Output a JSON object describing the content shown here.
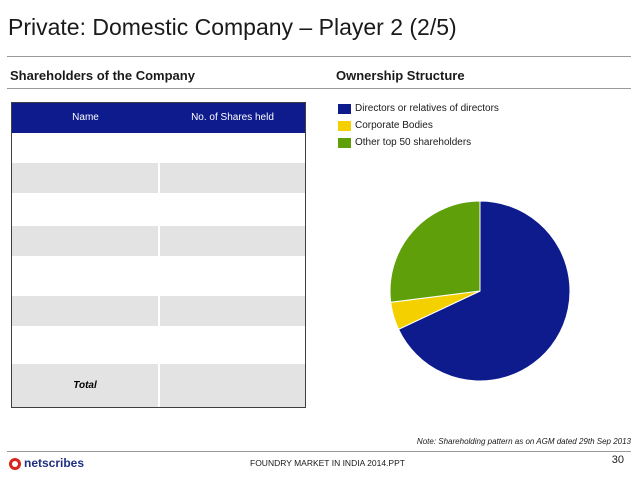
{
  "slide": {
    "title": "Private: Domestic Company – Player 2 (2/5)",
    "left_heading": "Shareholders of the Company",
    "right_heading": "Ownership Structure",
    "note": "Note: Shareholding pattern as on AGM dated 29th Sep 2013",
    "footer": "FOUNDRY MARKET IN INDIA 2014.PPT",
    "page_number": "30",
    "logo_text": "netscribes"
  },
  "table": {
    "headers": [
      "Name",
      "No. of Shares held"
    ],
    "total_label": "Total"
  },
  "colors": {
    "header_bg": "#0d1b8c",
    "directors": "#0d1b8c",
    "corporate": "#f5d000",
    "other": "#5f9f0a"
  },
  "chart_data": {
    "type": "pie",
    "title": "Ownership Structure",
    "legend_position": "top",
    "categories": [
      "Directors or relatives of directors",
      "Corporate Bodies",
      "Other top 50 shareholders"
    ],
    "values": [
      68,
      5,
      27
    ],
    "colors": [
      "#0d1b8c",
      "#f5d000",
      "#5f9f0a"
    ]
  }
}
